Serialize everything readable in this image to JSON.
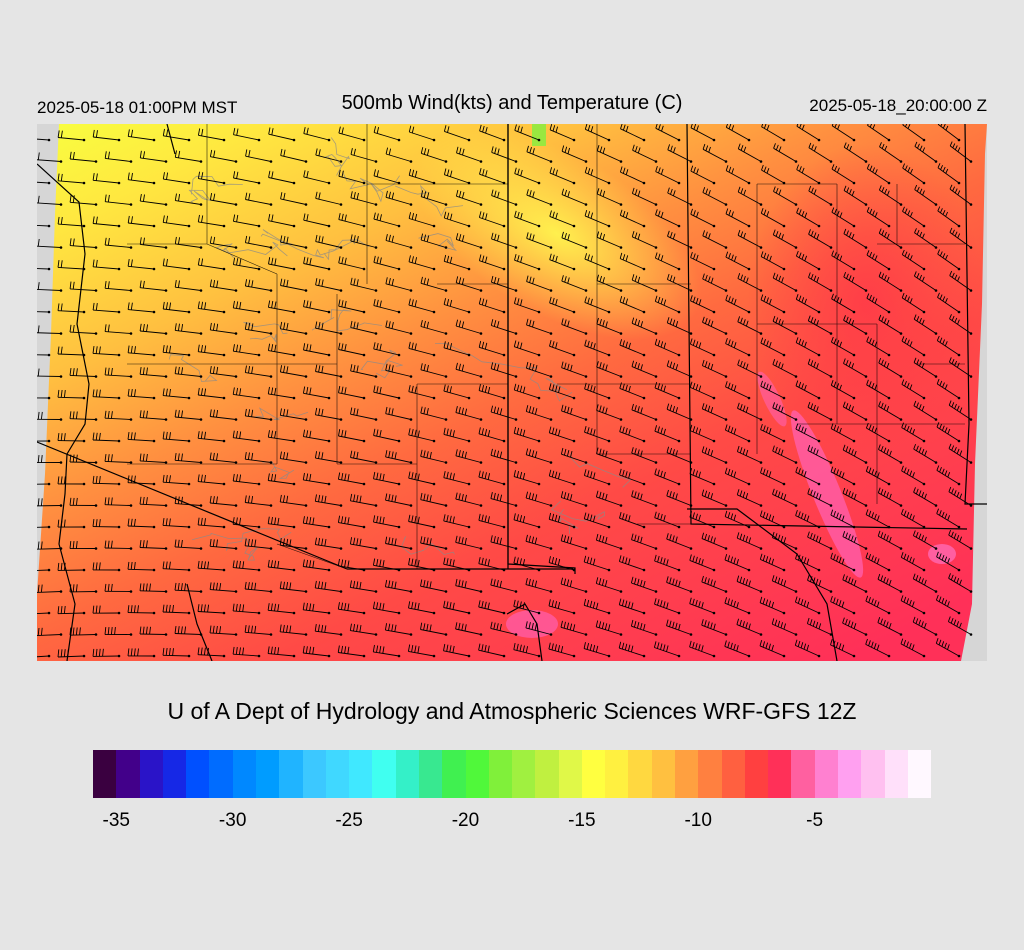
{
  "header": {
    "valid_local": "2025-05-18 01:00PM MST",
    "title": "500mb Wind(kts) and Temperature (C)",
    "valid_utc": "2025-05-18_20:00:00 Z"
  },
  "credit": "U of A Dept of Hydrology and Atmospheric Sciences WRF-GFS 12Z",
  "colorbar": {
    "min": -36,
    "max": -1,
    "step": 1,
    "tick_labels": [
      "-35",
      "-30",
      "-25",
      "-20",
      "-15",
      "-10",
      "-5"
    ],
    "colors": [
      "#3a0040",
      "#42008a",
      "#2a14c8",
      "#1628e6",
      "#0050ff",
      "#006cff",
      "#0088ff",
      "#009cff",
      "#20b4ff",
      "#3cc8ff",
      "#40d8ff",
      "#40e8ff",
      "#40fff0",
      "#34f0c8",
      "#38e890",
      "#40f050",
      "#50f83a",
      "#80f03a",
      "#a0f040",
      "#c0f040",
      "#e0f848",
      "#ffff40",
      "#fff040",
      "#ffd840",
      "#ffc040",
      "#ffa040",
      "#ff8040",
      "#ff6040",
      "#ff4040",
      "#ff3058",
      "#ff60a0",
      "#ff80d0",
      "#ffa0f0",
      "#ffc0f0",
      "#ffe0fa",
      "#fff8ff"
    ]
  },
  "map": {
    "background_color": "#d8d8d8",
    "boundary_color": "#000000",
    "contour_color": "#808080",
    "field": "500mb temperature (C)",
    "wind_barb_units": "kts"
  }
}
